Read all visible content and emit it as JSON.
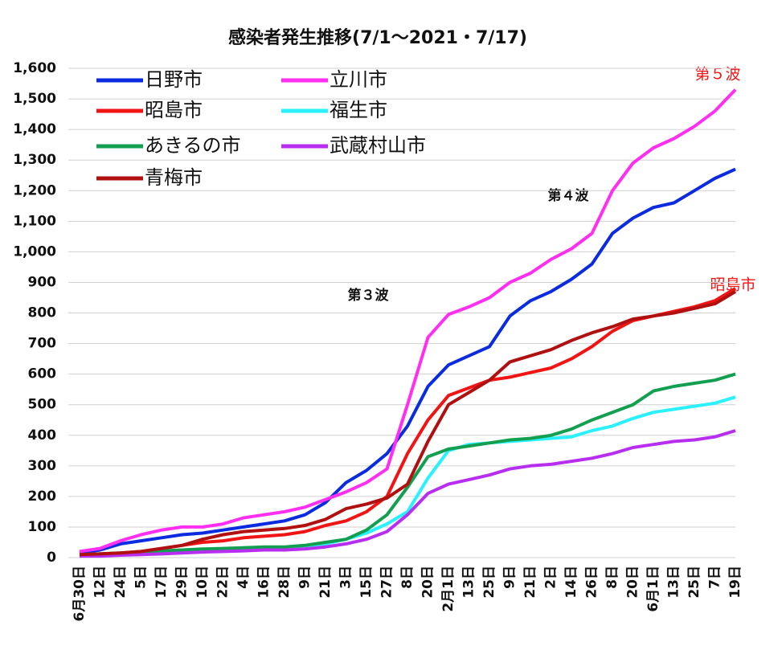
{
  "chart_data": {
    "type": "line",
    "title": "感染者発生推移(7/1～2021・7/17)",
    "categories": [
      "6月30日",
      "12日",
      "24日",
      "5日",
      "17日",
      "29日",
      "10日",
      "22日",
      "4日",
      "16日",
      "28日",
      "9日",
      "21日",
      "3日",
      "15日",
      "27日",
      "8日",
      "20日",
      "2月1日",
      "13日",
      "25日",
      "9日",
      "21日",
      "2日",
      "14日",
      "26日",
      "8日",
      "20日",
      "6月1日",
      "13日",
      "25日",
      "7日",
      "19日"
    ],
    "series": [
      {
        "name": "日野市",
        "color": "#0a2be0",
        "values": [
          15,
          25,
          45,
          55,
          65,
          75,
          80,
          90,
          100,
          110,
          120,
          140,
          180,
          245,
          285,
          340,
          430,
          560,
          630,
          660,
          690,
          790,
          840,
          870,
          910,
          960,
          1060,
          1110,
          1145,
          1160,
          1200,
          1240,
          1270
        ]
      },
      {
        "name": "立川市",
        "color": "#ff2ef0",
        "values": [
          20,
          30,
          55,
          75,
          90,
          100,
          100,
          110,
          130,
          140,
          150,
          165,
          190,
          215,
          245,
          290,
          500,
          720,
          795,
          820,
          850,
          900,
          930,
          975,
          1010,
          1060,
          1200,
          1290,
          1340,
          1370,
          1410,
          1460,
          1530
        ]
      },
      {
        "name": "昭島市",
        "color": "#f01414",
        "values": [
          10,
          12,
          15,
          20,
          30,
          40,
          50,
          55,
          65,
          70,
          75,
          85,
          105,
          120,
          150,
          200,
          340,
          450,
          530,
          555,
          580,
          590,
          605,
          620,
          650,
          690,
          740,
          775,
          790,
          805,
          820,
          840,
          880
        ]
      },
      {
        "name": "福生市",
        "color": "#2af0ff",
        "values": [
          10,
          10,
          12,
          15,
          15,
          18,
          20,
          22,
          25,
          25,
          25,
          30,
          45,
          60,
          80,
          110,
          150,
          260,
          350,
          370,
          375,
          380,
          385,
          390,
          395,
          415,
          430,
          455,
          475,
          485,
          495,
          505,
          525
        ]
      },
      {
        "name": "あきるの市",
        "color": "#12a050",
        "values": [
          10,
          12,
          15,
          18,
          22,
          25,
          28,
          30,
          32,
          35,
          35,
          40,
          50,
          60,
          90,
          140,
          230,
          330,
          355,
          365,
          375,
          385,
          390,
          400,
          420,
          450,
          475,
          500,
          545,
          560,
          570,
          580,
          600
        ]
      },
      {
        "name": "武蔵村山市",
        "color": "#b82ef0",
        "values": [
          5,
          5,
          8,
          10,
          12,
          15,
          18,
          20,
          22,
          25,
          25,
          28,
          35,
          45,
          60,
          85,
          140,
          210,
          240,
          255,
          270,
          290,
          300,
          305,
          315,
          325,
          340,
          360,
          370,
          380,
          385,
          395,
          415
        ]
      },
      {
        "name": "青梅市",
        "color": "#b01010",
        "values": [
          10,
          12,
          15,
          20,
          30,
          40,
          60,
          75,
          85,
          90,
          95,
          105,
          125,
          160,
          175,
          195,
          240,
          380,
          500,
          540,
          580,
          640,
          660,
          680,
          710,
          735,
          755,
          780,
          790,
          800,
          815,
          830,
          870
        ]
      }
    ],
    "ylim": [
      0,
      1600
    ],
    "yticks": [
      0,
      100,
      200,
      300,
      400,
      500,
      600,
      700,
      800,
      900,
      {
        "value": 1000,
        "label": "1,000"
      },
      {
        "value": 1100,
        "label": "1,100"
      },
      {
        "value": 1200,
        "label": "1,200"
      },
      {
        "value": 1300,
        "label": "1,300"
      },
      {
        "value": 1400,
        "label": "1,400"
      },
      {
        "value": 1500,
        "label": "1,500"
      },
      {
        "value": 1600,
        "label": "1,600"
      }
    ],
    "grid": true,
    "annotations": [
      "第５波",
      "第４波",
      "第３波",
      "昭島市"
    ]
  }
}
